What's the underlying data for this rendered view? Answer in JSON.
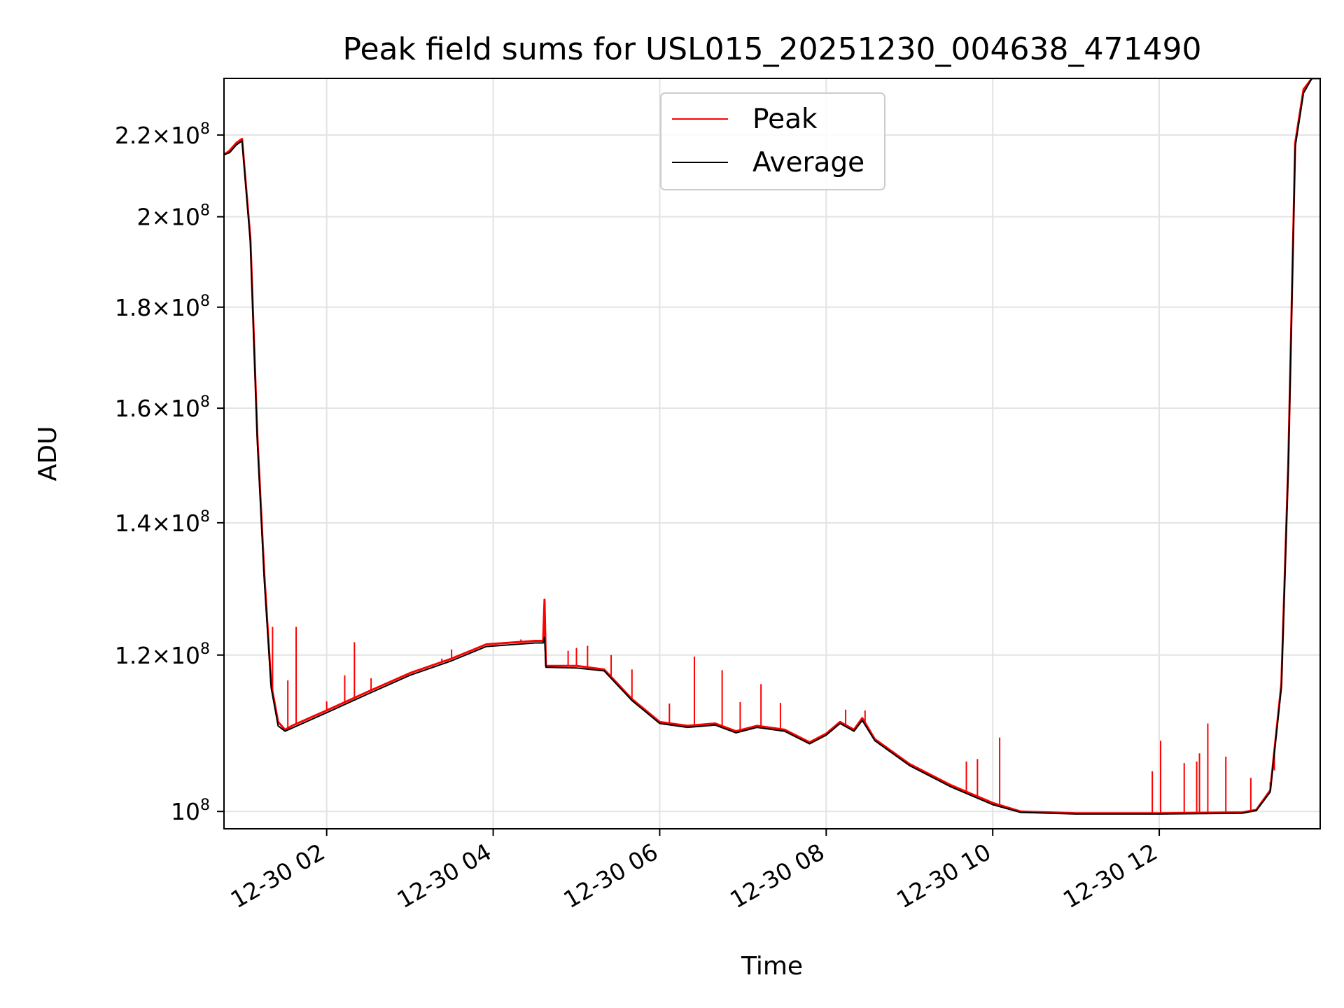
{
  "chart_data": {
    "type": "line",
    "title": "Peak field sums for USL015_20251230_004638_471490",
    "xlabel": "Time",
    "ylabel": "ADU",
    "yscale": "log",
    "grid": true,
    "legend_position": "top-center",
    "x_tick_labels": [
      "12-30 02",
      "12-30 04",
      "12-30 06",
      "12-30 08",
      "12-30 10",
      "12-30 12"
    ],
    "x_tick_values": [
      "2025-12-30 02:00",
      "2025-12-30 04:00",
      "2025-12-30 06:00",
      "2025-12-30 08:00",
      "2025-12-30 10:00",
      "2025-12-30 12:00"
    ],
    "xlim": [
      "2025-12-30 00:46",
      "2025-12-30 13:56"
    ],
    "y_tick_labels": [
      {
        "mantissa": "",
        "value": 100000000
      },
      {
        "mantissa": "1.2",
        "value": 120000000
      },
      {
        "mantissa": "1.4",
        "value": 140000000
      },
      {
        "mantissa": "1.6",
        "value": 160000000
      },
      {
        "mantissa": "1.8",
        "value": 180000000
      },
      {
        "mantissa": "2",
        "value": 200000000
      },
      {
        "mantissa": "2.2",
        "value": 220000000
      }
    ],
    "y_tick_base": "10",
    "y_tick_exponent": "8",
    "ylim": [
      98000000,
      235000000
    ],
    "series": [
      {
        "name": "Peak",
        "color": "#ff0000",
        "x": [
          "2025-12-30 00:46",
          "2025-12-30 00:50",
          "2025-12-30 00:55",
          "2025-12-30 00:59",
          "2025-12-30 01:05",
          "2025-12-30 01:10",
          "2025-12-30 01:15",
          "2025-12-30 01:20",
          "2025-12-30 01:25",
          "2025-12-30 01:30",
          "2025-12-30 01:35",
          "2025-12-30 01:45",
          "2025-12-30 02:00",
          "2025-12-30 02:30",
          "2025-12-30 03:00",
          "2025-12-30 03:30",
          "2025-12-30 03:55",
          "2025-12-30 04:30",
          "2025-12-30 04:36",
          "2025-12-30 04:37",
          "2025-12-30 04:38",
          "2025-12-30 05:00",
          "2025-12-30 05:20",
          "2025-12-30 05:40",
          "2025-12-30 06:00",
          "2025-12-30 06:20",
          "2025-12-30 06:40",
          "2025-12-30 06:55",
          "2025-12-30 07:10",
          "2025-12-30 07:30",
          "2025-12-30 07:48",
          "2025-12-30 08:00",
          "2025-12-30 08:10",
          "2025-12-30 08:20",
          "2025-12-30 08:26",
          "2025-12-30 08:35",
          "2025-12-30 09:00",
          "2025-12-30 09:30",
          "2025-12-30 10:00",
          "2025-12-30 10:20",
          "2025-12-30 11:00",
          "2025-12-30 12:00",
          "2025-12-30 13:00",
          "2025-12-30 13:10",
          "2025-12-30 13:20",
          "2025-12-30 13:28",
          "2025-12-30 13:33",
          "2025-12-30 13:38",
          "2025-12-30 13:44",
          "2025-12-30 13:50",
          "2025-12-30 13:56"
        ],
        "values": [
          215000000,
          216000000,
          218000000,
          219000000,
          195000000,
          155000000,
          132000000,
          116000000,
          111000000,
          110000000,
          110500000,
          111300000,
          112500000,
          115000000,
          117500000,
          119500000,
          121500000,
          122000000,
          122000000,
          128000000,
          118500000,
          118500000,
          118000000,
          114000000,
          111000000,
          110500000,
          110800000,
          109800000,
          110500000,
          110000000,
          108400000,
          109500000,
          111000000,
          110000000,
          111500000,
          108800000,
          105700000,
          103100000,
          101000000,
          100000000,
          99800000,
          99800000,
          99900000,
          100200000,
          102500000,
          116000000,
          150000000,
          218000000,
          232000000,
          235000000,
          235000000
        ]
      },
      {
        "name": "Average",
        "color": "#000000",
        "x": [
          "2025-12-30 00:46",
          "2025-12-30 00:50",
          "2025-12-30 00:55",
          "2025-12-30 00:59",
          "2025-12-30 01:05",
          "2025-12-30 01:10",
          "2025-12-30 01:15",
          "2025-12-30 01:20",
          "2025-12-30 01:25",
          "2025-12-30 01:30",
          "2025-12-30 01:35",
          "2025-12-30 01:45",
          "2025-12-30 02:00",
          "2025-12-30 02:30",
          "2025-12-30 03:00",
          "2025-12-30 03:30",
          "2025-12-30 03:55",
          "2025-12-30 04:30",
          "2025-12-30 04:36",
          "2025-12-30 04:37",
          "2025-12-30 04:38",
          "2025-12-30 05:00",
          "2025-12-30 05:20",
          "2025-12-30 05:40",
          "2025-12-30 06:00",
          "2025-12-30 06:20",
          "2025-12-30 06:40",
          "2025-12-30 06:55",
          "2025-12-30 07:10",
          "2025-12-30 07:30",
          "2025-12-30 07:48",
          "2025-12-30 08:00",
          "2025-12-30 08:10",
          "2025-12-30 08:20",
          "2025-12-30 08:26",
          "2025-12-30 08:35",
          "2025-12-30 09:00",
          "2025-12-30 09:30",
          "2025-12-30 10:00",
          "2025-12-30 10:20",
          "2025-12-30 11:00",
          "2025-12-30 12:00",
          "2025-12-30 13:00",
          "2025-12-30 13:10",
          "2025-12-30 13:20",
          "2025-12-30 13:28",
          "2025-12-30 13:33",
          "2025-12-30 13:38",
          "2025-12-30 13:44",
          "2025-12-30 13:50",
          "2025-12-30 13:56"
        ],
        "values": [
          215000000,
          215500000,
          217500000,
          218500000,
          194000000,
          154000000,
          131000000,
          115500000,
          110500000,
          109800000,
          110200000,
          111000000,
          112200000,
          114700000,
          117200000,
          119200000,
          121200000,
          121700000,
          121700000,
          122500000,
          118300000,
          118200000,
          117800000,
          113800000,
          110800000,
          110300000,
          110600000,
          109600000,
          110300000,
          109800000,
          108200000,
          109300000,
          110800000,
          109800000,
          111200000,
          108600000,
          105500000,
          102900000,
          100800000,
          99900000,
          99700000,
          99700000,
          99800000,
          100100000,
          102300000,
          115500000,
          149000000,
          217000000,
          231000000,
          235000000,
          235000000
        ]
      }
    ],
    "spikes": {
      "Peak": [
        {
          "x": "2025-12-30 01:21",
          "y": 124000000
        },
        {
          "x": "2025-12-30 01:32",
          "y": 116500000
        },
        {
          "x": "2025-12-30 01:38",
          "y": 124000000
        },
        {
          "x": "2025-12-30 02:00",
          "y": 113700000
        },
        {
          "x": "2025-12-30 02:13",
          "y": 117200000
        },
        {
          "x": "2025-12-30 02:20",
          "y": 121800000
        },
        {
          "x": "2025-12-30 02:32",
          "y": 116800000
        },
        {
          "x": "2025-12-30 03:23",
          "y": 119500000
        },
        {
          "x": "2025-12-30 03:30",
          "y": 120800000
        },
        {
          "x": "2025-12-30 04:12",
          "y": 121600000
        },
        {
          "x": "2025-12-30 04:20",
          "y": 122200000
        },
        {
          "x": "2025-12-30 04:37",
          "y": 128000000
        },
        {
          "x": "2025-12-30 04:54",
          "y": 120600000
        },
        {
          "x": "2025-12-30 05:00",
          "y": 121000000
        },
        {
          "x": "2025-12-30 05:08",
          "y": 121300000
        },
        {
          "x": "2025-12-30 05:25",
          "y": 120000000
        },
        {
          "x": "2025-12-30 05:40",
          "y": 118000000
        },
        {
          "x": "2025-12-30 06:07",
          "y": 113400000
        },
        {
          "x": "2025-12-30 06:25",
          "y": 119800000
        },
        {
          "x": "2025-12-30 06:45",
          "y": 117900000
        },
        {
          "x": "2025-12-30 06:58",
          "y": 113600000
        },
        {
          "x": "2025-12-30 07:13",
          "y": 116000000
        },
        {
          "x": "2025-12-30 07:27",
          "y": 113500000
        },
        {
          "x": "2025-12-30 08:14",
          "y": 112600000
        },
        {
          "x": "2025-12-30 08:28",
          "y": 112500000
        },
        {
          "x": "2025-12-30 09:41",
          "y": 106000000
        },
        {
          "x": "2025-12-30 09:49",
          "y": 106300000
        },
        {
          "x": "2025-12-30 10:05",
          "y": 109000000
        },
        {
          "x": "2025-12-30 11:55",
          "y": 104800000
        },
        {
          "x": "2025-12-30 12:01",
          "y": 108600000
        },
        {
          "x": "2025-12-30 12:18",
          "y": 105800000
        },
        {
          "x": "2025-12-30 12:27",
          "y": 106000000
        },
        {
          "x": "2025-12-30 12:29",
          "y": 107000000
        },
        {
          "x": "2025-12-30 12:35",
          "y": 110800000
        },
        {
          "x": "2025-12-30 12:48",
          "y": 106600000
        },
        {
          "x": "2025-12-30 13:06",
          "y": 104000000
        },
        {
          "x": "2025-12-30 13:20",
          "y": 103500000
        },
        {
          "x": "2025-12-30 13:23",
          "y": 104900000
        }
      ]
    },
    "legend": [
      "Peak",
      "Average"
    ]
  }
}
